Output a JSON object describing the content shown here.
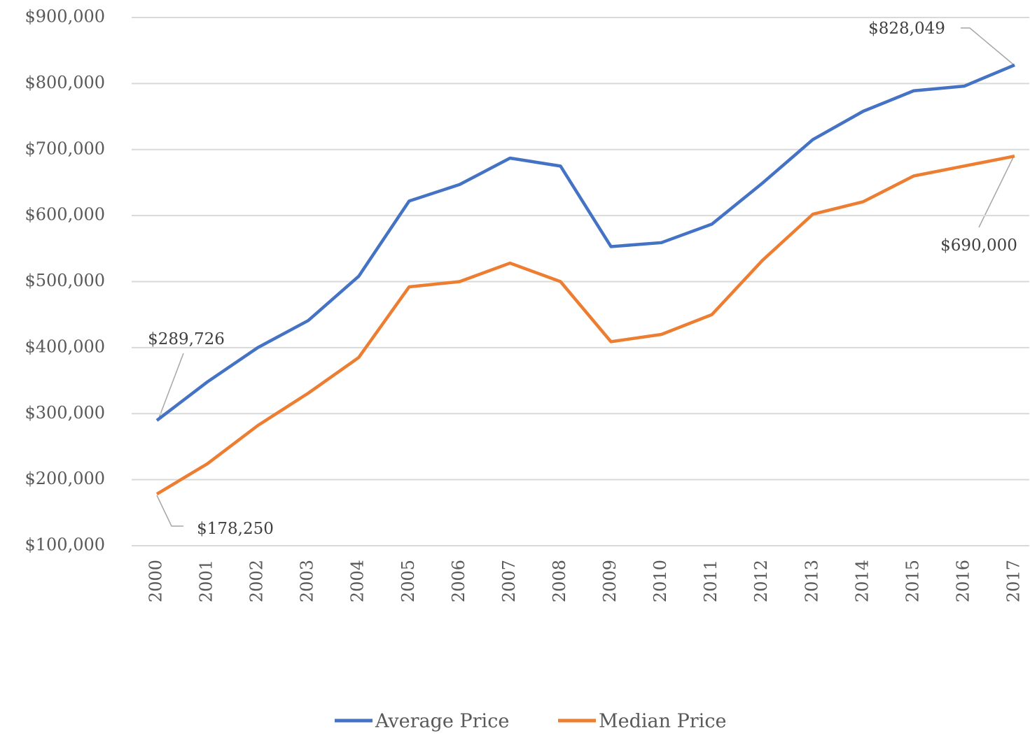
{
  "chart_data": {
    "type": "line",
    "categories": [
      "2000",
      "2001",
      "2002",
      "2003",
      "2004",
      "2005",
      "2006",
      "2007",
      "2008",
      "2009",
      "2010",
      "2011",
      "2012",
      "2013",
      "2014",
      "2015",
      "2016",
      "2017"
    ],
    "series": [
      {
        "name": "Average Price",
        "color": "#4472c4",
        "values": [
          289726,
          348000,
          400000,
          441000,
          508000,
          622000,
          647000,
          687000,
          675000,
          553000,
          559000,
          587000,
          649000,
          715000,
          758000,
          789000,
          796000,
          828049
        ],
        "value_labels": [
          "$289,726",
          null,
          null,
          null,
          null,
          null,
          null,
          null,
          null,
          null,
          null,
          null,
          null,
          null,
          null,
          null,
          null,
          "$828,049"
        ]
      },
      {
        "name": "Median Price",
        "color": "#ed7d31",
        "values": [
          178250,
          224000,
          282000,
          331000,
          385000,
          492000,
          500000,
          528000,
          500000,
          409000,
          420000,
          450000,
          532000,
          602000,
          621000,
          660000,
          675000,
          690000
        ],
        "value_labels": [
          "$178,250",
          null,
          null,
          null,
          null,
          null,
          null,
          null,
          null,
          null,
          null,
          null,
          null,
          null,
          null,
          null,
          null,
          "$690,000"
        ]
      }
    ],
    "ylim": [
      100000,
      900000
    ],
    "yticks": [
      {
        "value": 100000,
        "label": "$100,000"
      },
      {
        "value": 200000,
        "label": "$200,000"
      },
      {
        "value": 300000,
        "label": "$300,000"
      },
      {
        "value": 400000,
        "label": "$400,000"
      },
      {
        "value": 500000,
        "label": "$500,000"
      },
      {
        "value": 600000,
        "label": "$600,000"
      },
      {
        "value": 700000,
        "label": "$700,000"
      },
      {
        "value": 800000,
        "label": "$800,000"
      },
      {
        "value": 900000,
        "label": "$900,000"
      }
    ],
    "grid": true,
    "legend": "bottom"
  }
}
